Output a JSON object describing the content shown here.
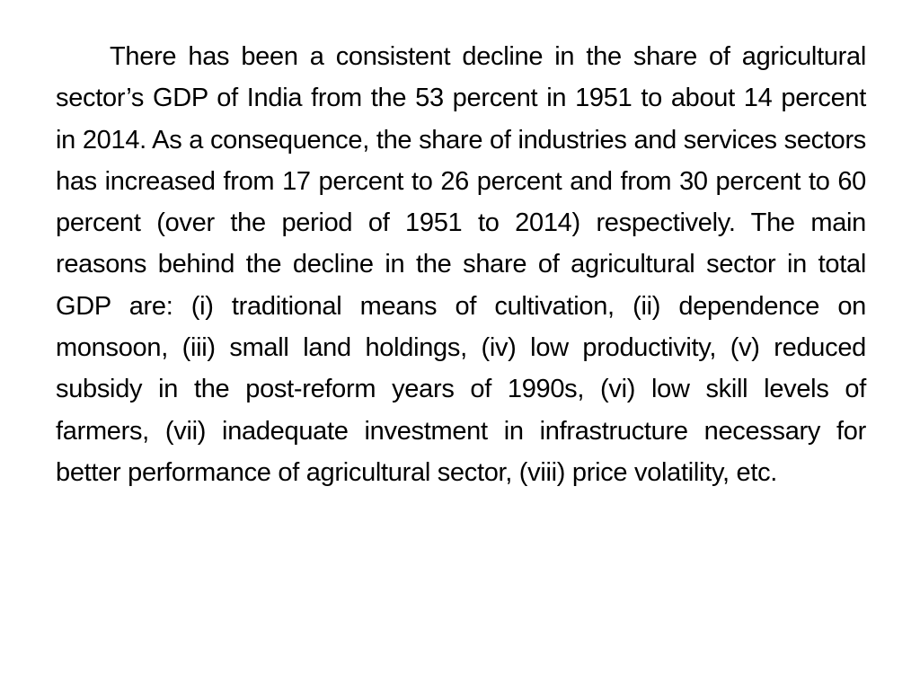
{
  "slide": {
    "body_text": "There has been a consistent decline in the share of agricultural sector’s GDP of India from the 53 percent in 1951 to about 14 percent in 2014. As a consequence, the share of industries and services sectors has increased from 17 percent to 26 percent and from 30 percent to 60 percent (over the period of 1951 to 2014) respectively. The main reasons behind the decline in the share of agricultural sector in total GDP are: (i) traditional means of cultivation, (ii) dependence on monsoon, (iii) small land holdings, (iv) low productivity, (v) reduced subsidy in the post-reform years of 1990s, (vi) low skill levels of farmers, (vii) inadequate investment in infrastructure necessary for better performance of agricultural sector, (viii) price volatility, etc."
  }
}
